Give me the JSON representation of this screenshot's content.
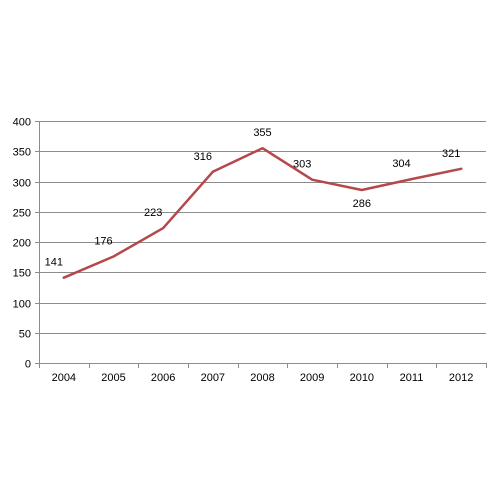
{
  "chart_data": {
    "type": "line",
    "title": "",
    "xlabel": "",
    "ylabel": "",
    "categories": [
      "2004",
      "2005",
      "2006",
      "2007",
      "2008",
      "2009",
      "2010",
      "2011",
      "2012"
    ],
    "series": [
      {
        "values": [
          141,
          176,
          223,
          316,
          355,
          303,
          286,
          304,
          321
        ],
        "labels": [
          "141",
          "176",
          "223",
          "316",
          "355",
          "303",
          "286",
          "304",
          "321"
        ]
      }
    ],
    "ylim": [
      0,
      400
    ],
    "yticks": [
      0,
      50,
      100,
      150,
      200,
      250,
      300,
      350,
      400
    ],
    "ytick_labels": [
      "0",
      "50",
      "100",
      "150",
      "200",
      "250",
      "300",
      "350",
      "400"
    ],
    "grid": true,
    "legend": "none",
    "colors": {
      "line": "#b5484a",
      "grid": "#8c8c8c",
      "axis": "#8c8c8c"
    }
  }
}
